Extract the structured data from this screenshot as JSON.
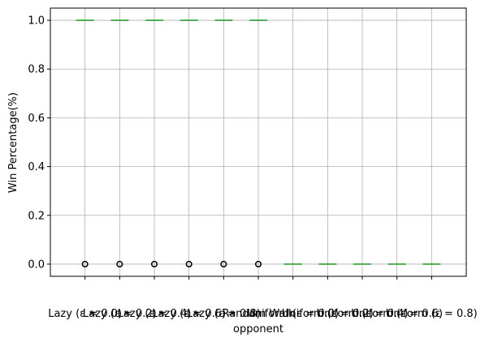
{
  "chart_data": {
    "type": "box",
    "title": "",
    "xlabel": "opponent",
    "ylabel": "Win Percentage(%)",
    "ylim": [
      -0.05,
      1.05
    ],
    "yticks": [
      0.0,
      0.2,
      0.4,
      0.6,
      0.8,
      1.0
    ],
    "ytick_labels": [
      "0.0",
      "0.2",
      "0.4",
      "0.6",
      "0.8",
      "1.0"
    ],
    "grid": true,
    "categories": [
      "Lazy (ε = 0.0)",
      "Lazy (ε = 0.2)",
      "Lazy (ε = 0.4)",
      "Lazy (ε = 0.6)",
      "Lazy (ε = 0.8)",
      "Random Walk",
      "Uniform (ε = 0.0)",
      "Uniform (ε = 0.2)",
      "Uniform (ε = 0.4)",
      "Uniform (ε = 0.6)",
      "Uniform (ε = 0.8)"
    ],
    "boxes": [
      {
        "median": 1.0,
        "q1": 1.0,
        "q3": 1.0,
        "whisker_low": 1.0,
        "whisker_high": 1.0,
        "outliers": [
          0.0
        ]
      },
      {
        "median": 1.0,
        "q1": 1.0,
        "q3": 1.0,
        "whisker_low": 1.0,
        "whisker_high": 1.0,
        "outliers": [
          0.0
        ]
      },
      {
        "median": 1.0,
        "q1": 1.0,
        "q3": 1.0,
        "whisker_low": 1.0,
        "whisker_high": 1.0,
        "outliers": [
          0.0
        ]
      },
      {
        "median": 1.0,
        "q1": 1.0,
        "q3": 1.0,
        "whisker_low": 1.0,
        "whisker_high": 1.0,
        "outliers": [
          0.0
        ]
      },
      {
        "median": 1.0,
        "q1": 1.0,
        "q3": 1.0,
        "whisker_low": 1.0,
        "whisker_high": 1.0,
        "outliers": [
          0.0
        ]
      },
      {
        "median": 1.0,
        "q1": 1.0,
        "q3": 1.0,
        "whisker_low": 1.0,
        "whisker_high": 1.0,
        "outliers": [
          0.0
        ]
      },
      {
        "median": 0.0,
        "q1": 0.0,
        "q3": 0.0,
        "whisker_low": 0.0,
        "whisker_high": 0.0,
        "outliers": []
      },
      {
        "median": 0.0,
        "q1": 0.0,
        "q3": 0.0,
        "whisker_low": 0.0,
        "whisker_high": 0.0,
        "outliers": []
      },
      {
        "median": 0.0,
        "q1": 0.0,
        "q3": 0.0,
        "whisker_low": 0.0,
        "whisker_high": 0.0,
        "outliers": []
      },
      {
        "median": 0.0,
        "q1": 0.0,
        "q3": 0.0,
        "whisker_low": 0.0,
        "whisker_high": 0.0,
        "outliers": []
      },
      {
        "median": 0.0,
        "q1": 0.0,
        "q3": 0.0,
        "whisker_low": 0.0,
        "whisker_high": 0.0,
        "outliers": []
      }
    ],
    "colors": {
      "median": "#2ca02c",
      "box": "#1f77b4",
      "outlier": "#000000",
      "grid": "#b0b0b0",
      "axis": "#000000"
    }
  }
}
